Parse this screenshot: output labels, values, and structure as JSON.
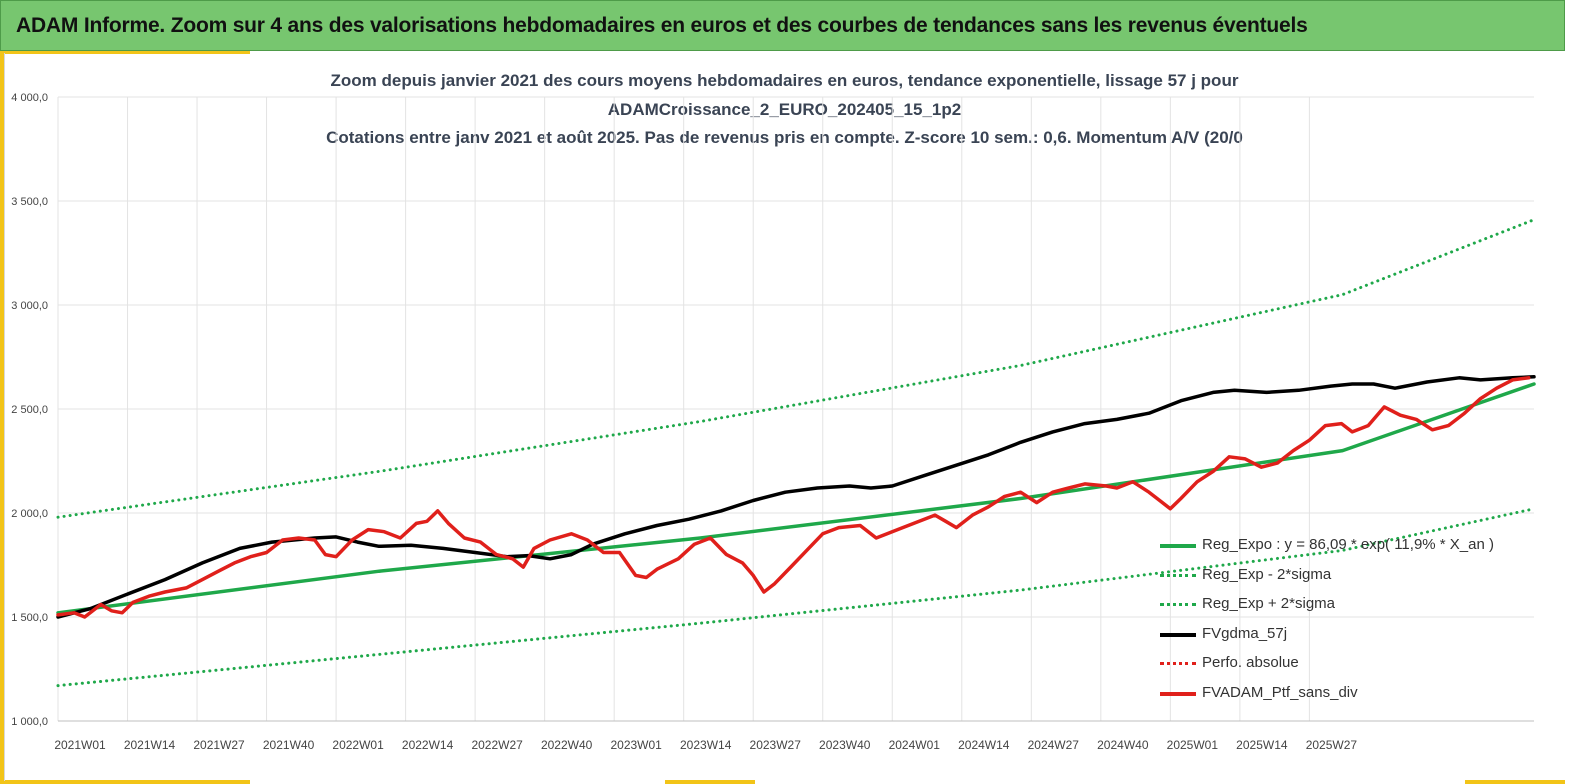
{
  "header": {
    "title": "ADAM Informe. Zoom sur 4 ans des valorisations hebdomadaires en euros et des courbes de tendances sans les revenus éventuels"
  },
  "colors": {
    "banner": "#77c66f",
    "accent": "#f2c418",
    "green": "#1fa84a",
    "black": "#000000",
    "red": "#e0201b"
  },
  "chart_data": {
    "type": "line",
    "title_lines": [
      "Zoom depuis janvier 2021 des cours moyens hebdomadaires  en euros, tendance exponentielle, lissage 57 j pour",
      "ADAMCroissance_2_EURO_202405_15_1p2",
      "Cotations entre janv 2021 et août 2025. Pas de revenus pris en compte. Z-score 10 sem.: 0,6. Momentum A/V (20/0"
    ],
    "x_ticks": [
      "2021W01",
      "2021W14",
      "2021W27",
      "2021W40",
      "2022W01",
      "2022W14",
      "2022W27",
      "2022W40",
      "2023W01",
      "2023W14",
      "2023W27",
      "2023W40",
      "2024W01",
      "2024W14",
      "2024W27",
      "2024W40",
      "2025W01",
      "2025W14",
      "2025W27"
    ],
    "x_weeks_per_tick": 13,
    "x_range_weeks": [
      0,
      239
    ],
    "y_ticks": [
      "1 000,0",
      "1 500,0",
      "2 000,0",
      "2 500,0",
      "3 000,0",
      "3 500,0",
      "4 000,0"
    ],
    "ylim": [
      1000,
      4000
    ],
    "grid": true,
    "legend_position": "bottom-right",
    "series": [
      {
        "name": "Reg_Expo : y = 86,09 * exp( 11,9% *  X_an )",
        "style": "solid",
        "color": "#1fa84a",
        "points": [
          [
            0,
            1520
          ],
          [
            52,
            1720
          ],
          [
            104,
            1880
          ],
          [
            156,
            2070
          ],
          [
            208,
            2300
          ],
          [
            239,
            2620
          ]
        ]
      },
      {
        "name": "Reg_Exp - 2*sigma",
        "style": "dotted",
        "color": "#1fa84a",
        "points": [
          [
            0,
            1170
          ],
          [
            52,
            1320
          ],
          [
            104,
            1470
          ],
          [
            156,
            1630
          ],
          [
            208,
            1820
          ],
          [
            239,
            2020
          ]
        ]
      },
      {
        "name": "Reg_Exp + 2*sigma",
        "style": "dotted",
        "color": "#1fa84a",
        "points": [
          [
            0,
            1980
          ],
          [
            52,
            2200
          ],
          [
            104,
            2440
          ],
          [
            156,
            2710
          ],
          [
            208,
            3050
          ],
          [
            239,
            3410
          ]
        ]
      },
      {
        "name": "FVgdma_57j",
        "style": "solid",
        "color": "#000000",
        "points": [
          [
            0,
            1500
          ],
          [
            6,
            1540
          ],
          [
            13,
            1610
          ],
          [
            20,
            1680
          ],
          [
            27,
            1760
          ],
          [
            34,
            1830
          ],
          [
            40,
            1860
          ],
          [
            48,
            1880
          ],
          [
            52,
            1885
          ],
          [
            56,
            1860
          ],
          [
            60,
            1840
          ],
          [
            66,
            1845
          ],
          [
            72,
            1830
          ],
          [
            78,
            1810
          ],
          [
            84,
            1790
          ],
          [
            88,
            1795
          ],
          [
            92,
            1780
          ],
          [
            96,
            1800
          ],
          [
            100,
            1850
          ],
          [
            106,
            1900
          ],
          [
            112,
            1940
          ],
          [
            118,
            1970
          ],
          [
            124,
            2010
          ],
          [
            130,
            2060
          ],
          [
            136,
            2100
          ],
          [
            142,
            2120
          ],
          [
            148,
            2130
          ],
          [
            152,
            2120
          ],
          [
            156,
            2130
          ],
          [
            162,
            2180
          ],
          [
            168,
            2230
          ],
          [
            174,
            2280
          ],
          [
            180,
            2340
          ],
          [
            186,
            2390
          ],
          [
            192,
            2430
          ],
          [
            198,
            2450
          ],
          [
            204,
            2480
          ],
          [
            210,
            2540
          ],
          [
            216,
            2580
          ],
          [
            220,
            2590
          ],
          [
            226,
            2580
          ],
          [
            232,
            2590
          ],
          [
            238,
            2610
          ],
          [
            242,
            2620
          ],
          [
            246,
            2620
          ],
          [
            250,
            2600
          ],
          [
            256,
            2630
          ],
          [
            262,
            2650
          ],
          [
            266,
            2640
          ],
          [
            272,
            2650
          ],
          [
            276,
            2655
          ]
        ]
      },
      {
        "name": "Perfo. absolue",
        "style": "dotted",
        "color": "#e0201b",
        "points": []
      },
      {
        "name": "FVADAM_Ptf_sans_div",
        "style": "solid",
        "color": "#e0201b",
        "points": [
          [
            0,
            1510
          ],
          [
            3,
            1520
          ],
          [
            5,
            1500
          ],
          [
            8,
            1560
          ],
          [
            10,
            1530
          ],
          [
            12,
            1520
          ],
          [
            14,
            1570
          ],
          [
            17,
            1600
          ],
          [
            20,
            1620
          ],
          [
            24,
            1640
          ],
          [
            27,
            1680
          ],
          [
            30,
            1720
          ],
          [
            33,
            1760
          ],
          [
            36,
            1790
          ],
          [
            39,
            1810
          ],
          [
            42,
            1870
          ],
          [
            45,
            1880
          ],
          [
            48,
            1870
          ],
          [
            50,
            1800
          ],
          [
            52,
            1790
          ],
          [
            55,
            1870
          ],
          [
            58,
            1920
          ],
          [
            61,
            1910
          ],
          [
            64,
            1880
          ],
          [
            67,
            1950
          ],
          [
            69,
            1960
          ],
          [
            71,
            2010
          ],
          [
            73,
            1950
          ],
          [
            76,
            1880
          ],
          [
            79,
            1860
          ],
          [
            82,
            1800
          ],
          [
            85,
            1780
          ],
          [
            87,
            1740
          ],
          [
            89,
            1830
          ],
          [
            92,
            1870
          ],
          [
            96,
            1900
          ],
          [
            99,
            1870
          ],
          [
            102,
            1810
          ],
          [
            105,
            1810
          ],
          [
            108,
            1700
          ],
          [
            110,
            1690
          ],
          [
            112,
            1730
          ],
          [
            116,
            1780
          ],
          [
            119,
            1850
          ],
          [
            122,
            1880
          ],
          [
            125,
            1800
          ],
          [
            128,
            1760
          ],
          [
            130,
            1700
          ],
          [
            132,
            1620
          ],
          [
            134,
            1660
          ],
          [
            137,
            1740
          ],
          [
            140,
            1820
          ],
          [
            143,
            1900
          ],
          [
            146,
            1930
          ],
          [
            150,
            1940
          ],
          [
            153,
            1880
          ],
          [
            157,
            1920
          ],
          [
            160,
            1950
          ],
          [
            164,
            1990
          ],
          [
            166,
            1960
          ],
          [
            168,
            1930
          ],
          [
            171,
            1990
          ],
          [
            174,
            2030
          ],
          [
            177,
            2080
          ],
          [
            180,
            2100
          ],
          [
            183,
            2050
          ],
          [
            186,
            2100
          ],
          [
            189,
            2120
          ],
          [
            192,
            2140
          ],
          [
            196,
            2130
          ],
          [
            198,
            2120
          ],
          [
            201,
            2150
          ],
          [
            204,
            2100
          ],
          [
            206,
            2060
          ],
          [
            208,
            2020
          ],
          [
            210,
            2070
          ],
          [
            213,
            2150
          ],
          [
            216,
            2200
          ],
          [
            219,
            2270
          ],
          [
            222,
            2260
          ],
          [
            225,
            2220
          ],
          [
            228,
            2240
          ],
          [
            231,
            2300
          ],
          [
            234,
            2350
          ],
          [
            237,
            2420
          ],
          [
            240,
            2430
          ],
          [
            242,
            2390
          ],
          [
            245,
            2420
          ],
          [
            248,
            2510
          ],
          [
            251,
            2470
          ],
          [
            254,
            2450
          ],
          [
            257,
            2400
          ],
          [
            260,
            2420
          ],
          [
            263,
            2480
          ],
          [
            266,
            2550
          ],
          [
            269,
            2600
          ],
          [
            272,
            2640
          ],
          [
            275,
            2650
          ]
        ]
      }
    ]
  }
}
